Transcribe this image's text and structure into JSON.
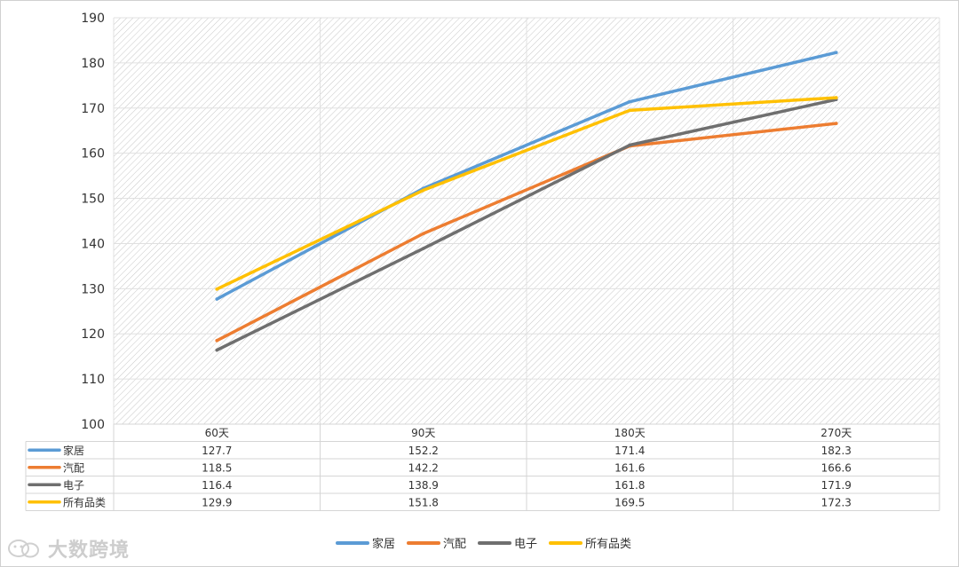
{
  "chart_data": {
    "type": "line",
    "title": "",
    "xlabel": "",
    "ylabel": "",
    "categories": [
      "60天",
      "90天",
      "180天",
      "270天"
    ],
    "ylim": [
      100,
      190
    ],
    "yticks": [
      100,
      110,
      120,
      130,
      140,
      150,
      160,
      170,
      180,
      190
    ],
    "grid": true,
    "legend_position": "bottom",
    "series": [
      {
        "name": "家居",
        "color": "#5B9BD5",
        "values": [
          127.7,
          152.2,
          171.4,
          182.3
        ]
      },
      {
        "name": "汽配",
        "color": "#ED7D31",
        "values": [
          118.5,
          142.2,
          161.6,
          166.6
        ]
      },
      {
        "name": "电子",
        "color": "#6F6F6F",
        "values": [
          116.4,
          138.9,
          161.8,
          171.9
        ]
      },
      {
        "name": "所有品类",
        "color": "#FFC000",
        "values": [
          129.9,
          151.8,
          169.5,
          172.3
        ]
      }
    ],
    "data_table": {
      "rows": [
        {
          "label": "家居",
          "cells": [
            "127.7",
            "152.2",
            "171.4",
            "182.3"
          ]
        },
        {
          "label": "汽配",
          "cells": [
            "118.5",
            "142.2",
            "161.6",
            "166.6"
          ]
        },
        {
          "label": "电子",
          "cells": [
            "116.4",
            "138.9",
            "161.8",
            "171.9"
          ]
        },
        {
          "label": "所有品类",
          "cells": [
            "129.9",
            "151.8",
            "169.5",
            "172.3"
          ]
        }
      ]
    }
  },
  "watermark": {
    "text": "大数跨境",
    "icon": "wechat-logo-icon"
  }
}
